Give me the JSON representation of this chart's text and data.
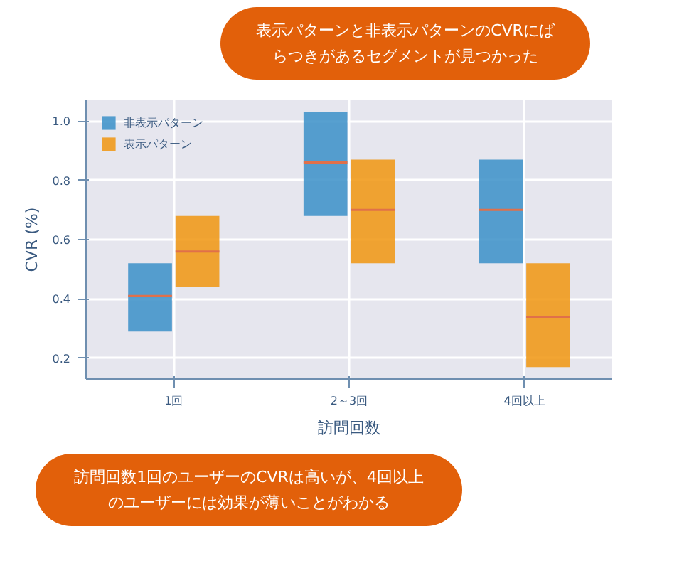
{
  "chart_data": {
    "type": "box",
    "xlabel": "訪問回数",
    "ylabel": "CVR (%)",
    "categories": [
      "1回",
      "2～3回",
      "4回以上"
    ],
    "series": [
      {
        "name": "非表示パターン",
        "color": "#3a8fc8",
        "boxes": [
          {
            "low": 0.29,
            "q1": 0.29,
            "median": 0.41,
            "q3": 0.52,
            "high": 0.52
          },
          {
            "low": 0.68,
            "q1": 0.68,
            "median": 0.86,
            "q3": 1.03,
            "high": 1.03
          },
          {
            "low": 0.52,
            "q1": 0.52,
            "median": 0.7,
            "q3": 0.87,
            "high": 0.87
          }
        ]
      },
      {
        "name": "表示パターン",
        "color": "#f0950f",
        "boxes": [
          {
            "low": 0.44,
            "q1": 0.44,
            "median": 0.56,
            "q3": 0.68,
            "high": 0.68
          },
          {
            "low": 0.52,
            "q1": 0.52,
            "median": 0.7,
            "q3": 0.87,
            "high": 0.87
          },
          {
            "low": 0.17,
            "q1": 0.17,
            "median": 0.34,
            "q3": 0.52,
            "high": 0.52
          }
        ]
      }
    ],
    "ylim": [
      0.13,
      1.07
    ],
    "yticks": [
      0.2,
      0.4,
      0.6,
      0.8,
      {
        "value": 1,
        "label": "1.0"
      }
    ],
    "grid": true,
    "legend": "top left",
    "annotations": [
      "表示パターンと非表示パターンのCVRにばらつきがあるセグメントが見つかった",
      "訪問回数1回のユーザーのCVRは高いが、4回以上のユーザーには効果が薄いことがわかる"
    ]
  }
}
